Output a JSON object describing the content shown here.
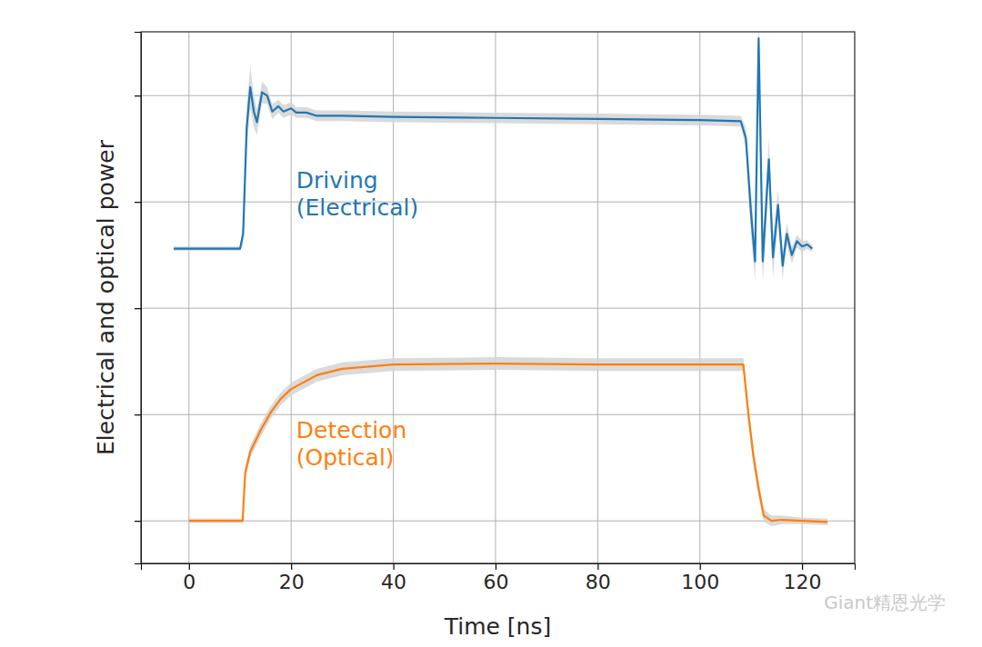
{
  "chart_data": {
    "type": "line",
    "x_label": "Time [ns]",
    "y_label": "Electrical and optical power",
    "xlim": [
      -9.4,
      130.3
    ],
    "xticks": [
      0,
      20,
      40,
      60,
      80,
      100,
      120
    ],
    "ylim": [
      -0.4,
      4.6
    ],
    "yticks": [
      0,
      1,
      2,
      3,
      4
    ],
    "tick_labels": "x",
    "grid": true,
    "series": [
      {
        "name": "Driving\n(Electrical)",
        "color": "#1f77b4",
        "x": [
          -3,
          10,
          10.6,
          11.3,
          12,
          12.7,
          13.3,
          14.3,
          15.3,
          16.3,
          17.5,
          18.5,
          20,
          21,
          23,
          25,
          30,
          40,
          60,
          80,
          100,
          108,
          109,
          110,
          110.8,
          111.5,
          112.3,
          113.5,
          114.3,
          115.3,
          116.2,
          117,
          118,
          119,
          120,
          121,
          122
        ],
        "values": [
          2.56,
          2.56,
          2.7,
          3.7,
          4.08,
          3.85,
          3.75,
          4.03,
          4.0,
          3.85,
          3.9,
          3.85,
          3.88,
          3.84,
          3.84,
          3.81,
          3.81,
          3.8,
          3.79,
          3.78,
          3.77,
          3.76,
          3.6,
          2.9,
          2.44,
          4.54,
          2.44,
          3.4,
          2.48,
          2.97,
          2.4,
          2.7,
          2.5,
          2.63,
          2.58,
          2.6,
          2.56
        ],
        "error": [
          0.02,
          0.02,
          0.1,
          0.2,
          0.2,
          0.15,
          0.12,
          0.1,
          0.08,
          0.07,
          0.06,
          0.06,
          0.06,
          0.05,
          0.05,
          0.05,
          0.05,
          0.05,
          0.05,
          0.05,
          0.05,
          0.05,
          0.1,
          0.2,
          0.2,
          0.2,
          0.2,
          0.2,
          0.2,
          0.15,
          0.12,
          0.1,
          0.08,
          0.06,
          0.05,
          0.04,
          0.03
        ]
      },
      {
        "name": "Detection\n(Optical)",
        "color": "#ff7f0e",
        "x": [
          0,
          10.5,
          11,
          12,
          14,
          16,
          18,
          20,
          25,
          30,
          40,
          60,
          80,
          100,
          108.5,
          109.5,
          110.5,
          111.5,
          112.5,
          114,
          116,
          120,
          125
        ],
        "values": [
          0,
          0,
          0.45,
          0.65,
          0.85,
          1.02,
          1.15,
          1.24,
          1.37,
          1.43,
          1.47,
          1.48,
          1.47,
          1.47,
          1.47,
          1.0,
          0.6,
          0.3,
          0.05,
          0.0,
          0.01,
          0.0,
          -0.01
        ],
        "error": [
          0.02,
          0.02,
          0.06,
          0.06,
          0.06,
          0.06,
          0.06,
          0.06,
          0.06,
          0.06,
          0.06,
          0.06,
          0.06,
          0.06,
          0.06,
          0.08,
          0.08,
          0.08,
          0.06,
          0.05,
          0.04,
          0.03,
          0.03
        ]
      }
    ],
    "annotations": [
      {
        "text": "Driving\n(Electrical)",
        "x": 21,
        "y": 3.13,
        "series": 0
      },
      {
        "text": "Detection\n(Optical)",
        "x": 21,
        "y": 0.78,
        "series": 1
      }
    ],
    "watermark": "Giant精恩光学"
  }
}
